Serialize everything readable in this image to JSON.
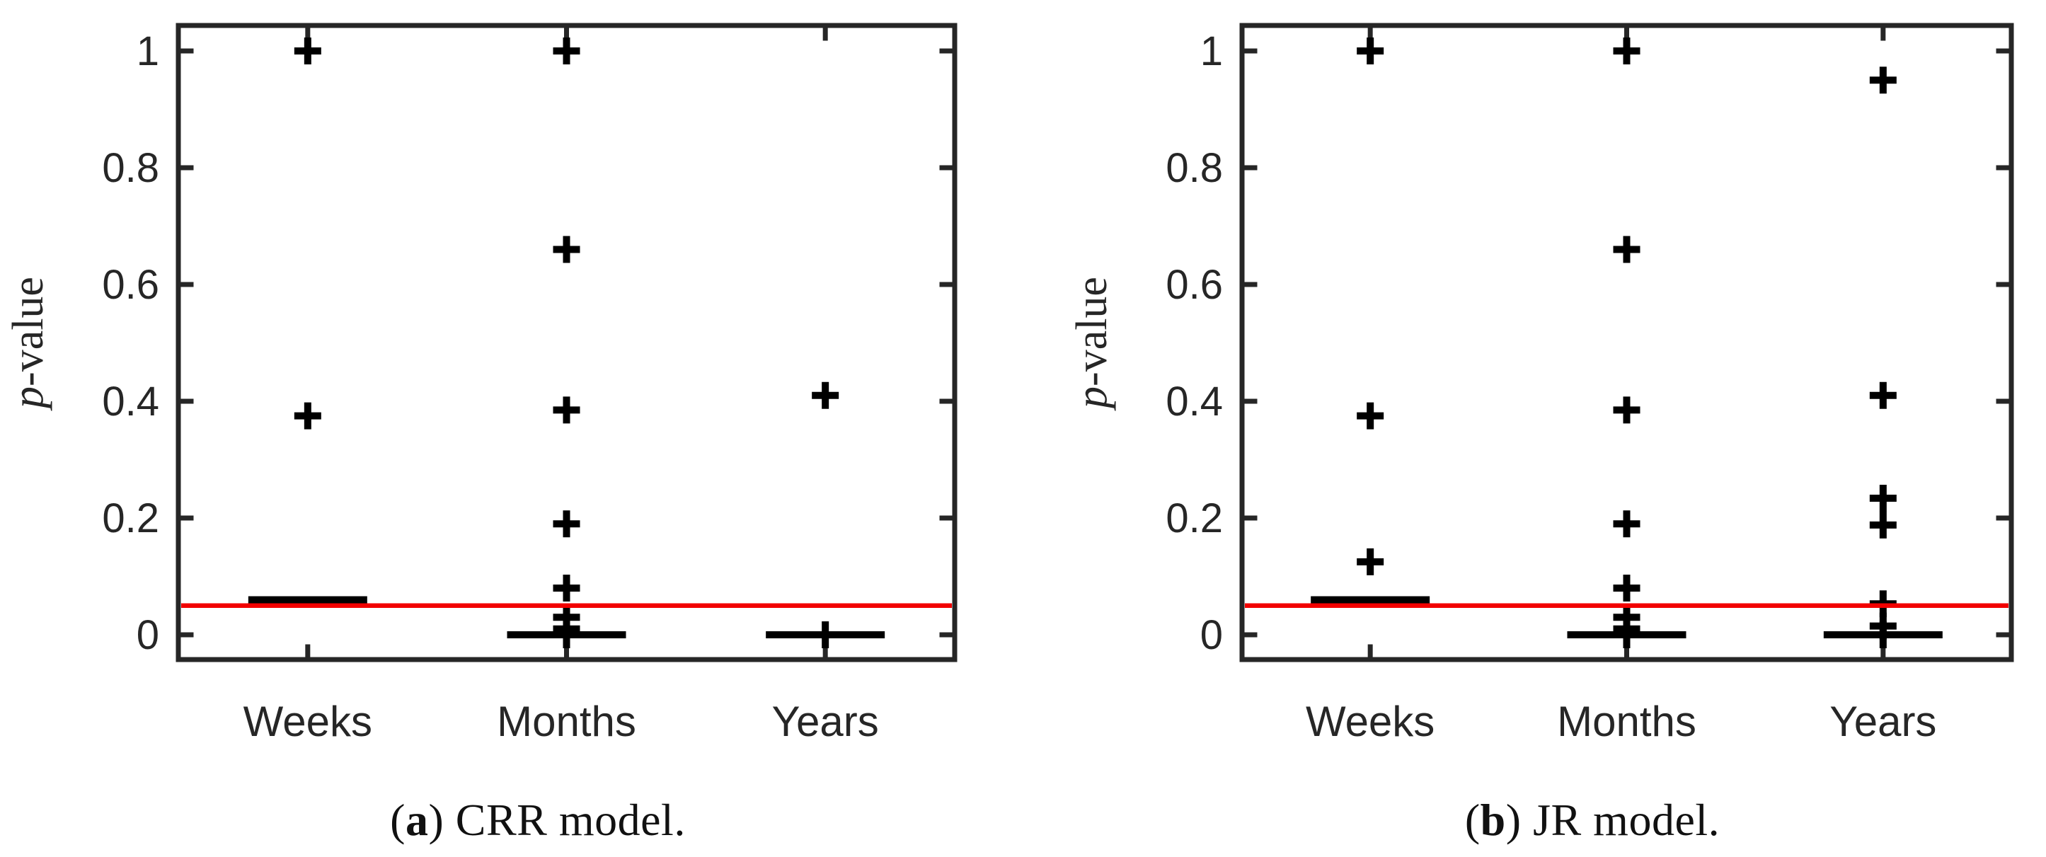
{
  "styles": {
    "background": "#ffffff",
    "axis_color": "#262626",
    "text_color": "#262626",
    "marker_color": "#000000",
    "median_color": "#000000",
    "significance_color": "#f20000"
  },
  "chart_data": [
    {
      "type": "boxplot",
      "panel": "a",
      "caption": {
        "open": "(",
        "letter": "a",
        "rest": ") CRR model."
      },
      "ylabel": "p-value",
      "ylabel_parts": {
        "italic": "p",
        "rest": "-value"
      },
      "categories": [
        "Weeks",
        "Months",
        "Years"
      ],
      "yticks": [
        0,
        0.2,
        0.4,
        0.6,
        0.8,
        1
      ],
      "ytick_labels": [
        "0",
        "0.2",
        "0.4",
        "0.6",
        "0.8",
        "1"
      ],
      "ylim": [
        -0.045,
        1.045
      ],
      "grid": false,
      "legend": false,
      "reference_line": {
        "y": 0.05
      },
      "boxes": [
        {
          "category": "Weeks",
          "median": 0.06,
          "outliers": [
            1.0,
            0.375
          ]
        },
        {
          "category": "Months",
          "median": 0.0,
          "outliers": [
            1.0,
            0.66,
            0.385,
            0.19,
            0.08,
            0.03,
            0.01,
            0.0
          ]
        },
        {
          "category": "Years",
          "median": 0.0,
          "outliers": [
            0.41,
            0.0
          ]
        }
      ]
    },
    {
      "type": "boxplot",
      "panel": "b",
      "caption": {
        "open": "(",
        "letter": "b",
        "rest": ") JR model."
      },
      "ylabel": "p-value",
      "ylabel_parts": {
        "italic": "p",
        "rest": "-value"
      },
      "categories": [
        "Weeks",
        "Months",
        "Years"
      ],
      "yticks": [
        0,
        0.2,
        0.4,
        0.6,
        0.8,
        1
      ],
      "ytick_labels": [
        "0",
        "0.2",
        "0.4",
        "0.6",
        "0.8",
        "1"
      ],
      "ylim": [
        -0.045,
        1.045
      ],
      "grid": false,
      "legend": false,
      "reference_line": {
        "y": 0.05
      },
      "boxes": [
        {
          "category": "Weeks",
          "median": 0.06,
          "outliers": [
            1.0,
            0.375,
            0.125
          ]
        },
        {
          "category": "Months",
          "median": 0.0,
          "outliers": [
            1.0,
            0.66,
            0.385,
            0.19,
            0.08,
            0.03,
            0.01,
            0.0
          ]
        },
        {
          "category": "Years",
          "median": 0.0,
          "outliers": [
            0.95,
            0.41,
            0.234,
            0.188,
            0.053,
            0.015,
            0.0
          ]
        }
      ]
    }
  ]
}
